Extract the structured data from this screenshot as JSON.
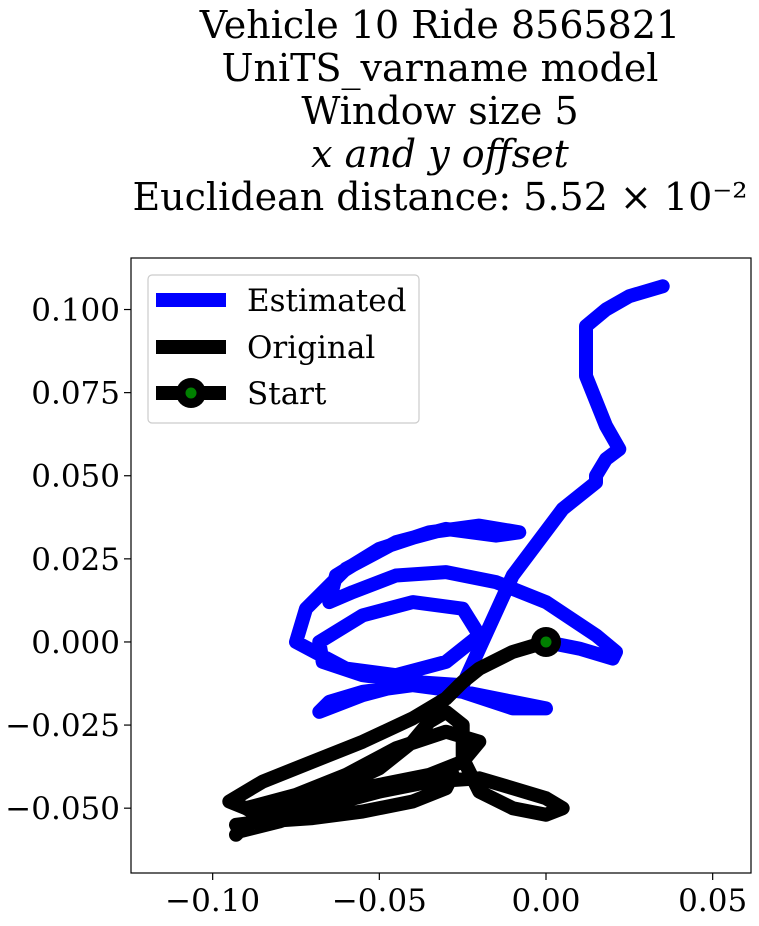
{
  "chart_data": {
    "type": "line",
    "title_lines": [
      "Vehicle 10 Ride 8565821",
      "UniTS_varname model",
      "Window size 5",
      "x and y offset",
      "Euclidean distance: 5.52 × 10⁻²"
    ],
    "xlabel": "",
    "ylabel": "",
    "xlim": [
      -0.1245,
      0.0615
    ],
    "ylim": [
      -0.0695,
      0.1155
    ],
    "xticks": [
      -0.1,
      -0.05,
      0.0,
      0.05
    ],
    "xtick_labels": [
      "−0.10",
      "−0.05",
      "0.00",
      "0.05"
    ],
    "yticks": [
      -0.05,
      -0.025,
      0.0,
      0.025,
      0.05,
      0.075,
      0.1
    ],
    "ytick_labels": [
      "−0.050",
      "−0.025",
      "0.000",
      "0.025",
      "0.050",
      "0.075",
      "0.100"
    ],
    "grid": false,
    "legend_position": "top-left",
    "legend": [
      "Estimated",
      "Original",
      "Start"
    ],
    "colors": {
      "estimated": "#0000ff",
      "original": "#000000",
      "start_fill": "#008000",
      "start_edge": "#000000"
    },
    "series": [
      {
        "name": "Estimated",
        "x": [
          0.0,
          0.01,
          0.02,
          0.021,
          0.015,
          0.0,
          -0.015,
          -0.03,
          -0.045,
          -0.058,
          -0.065,
          -0.063,
          -0.05,
          -0.035,
          -0.02,
          -0.008,
          -0.015,
          -0.03,
          -0.045,
          -0.06,
          -0.072,
          -0.075,
          -0.06,
          -0.045,
          -0.03,
          -0.02,
          -0.025,
          -0.04,
          -0.055,
          -0.068,
          -0.067,
          -0.055,
          -0.04,
          -0.025,
          -0.01,
          0.0,
          -0.01,
          -0.025,
          -0.04,
          -0.055,
          -0.065,
          -0.068,
          -0.055,
          -0.04,
          -0.025,
          -0.01,
          0.005,
          0.015,
          0.015,
          0.018,
          0.022,
          0.018,
          0.012,
          0.012,
          0.012,
          0.018,
          0.025,
          0.035
        ],
        "y": [
          0.0,
          -0.002,
          -0.005,
          -0.003,
          0.002,
          0.012,
          0.018,
          0.021,
          0.02,
          0.015,
          0.012,
          0.02,
          0.028,
          0.033,
          0.035,
          0.033,
          0.032,
          0.034,
          0.03,
          0.022,
          0.01,
          0.0,
          -0.008,
          -0.01,
          -0.006,
          0.002,
          0.01,
          0.012,
          0.008,
          0.0,
          -0.006,
          -0.01,
          -0.012,
          -0.015,
          -0.02,
          -0.02,
          -0.018,
          -0.015,
          -0.013,
          -0.015,
          -0.018,
          -0.021,
          -0.016,
          -0.012,
          -0.013,
          0.02,
          0.04,
          0.048,
          0.05,
          0.055,
          0.058,
          0.065,
          0.08,
          0.09,
          0.095,
          0.1,
          0.104,
          0.107
        ]
      },
      {
        "name": "Original",
        "x": [
          0.0,
          -0.01,
          -0.02,
          -0.025,
          -0.03,
          -0.04,
          -0.055,
          -0.07,
          -0.085,
          -0.095,
          -0.09,
          -0.075,
          -0.06,
          -0.045,
          -0.03,
          -0.02,
          -0.025,
          -0.035,
          -0.05,
          -0.065,
          -0.08,
          -0.09,
          -0.085,
          -0.07,
          -0.055,
          -0.04,
          -0.028,
          -0.03,
          -0.04,
          -0.055,
          -0.07,
          -0.085,
          -0.093,
          -0.092,
          -0.08,
          -0.065,
          -0.05,
          -0.035,
          -0.02,
          -0.01,
          0.0,
          0.005,
          0.0,
          -0.01,
          -0.02,
          -0.025,
          -0.025,
          -0.03,
          -0.035,
          -0.04,
          -0.05,
          -0.065,
          -0.08,
          -0.09,
          -0.093
        ],
        "y": [
          0.0,
          -0.003,
          -0.008,
          -0.012,
          -0.017,
          -0.023,
          -0.03,
          -0.036,
          -0.042,
          -0.048,
          -0.05,
          -0.046,
          -0.04,
          -0.032,
          -0.027,
          -0.03,
          -0.036,
          -0.04,
          -0.043,
          -0.046,
          -0.048,
          -0.05,
          -0.053,
          -0.05,
          -0.046,
          -0.041,
          -0.04,
          -0.044,
          -0.048,
          -0.051,
          -0.053,
          -0.054,
          -0.055,
          -0.057,
          -0.054,
          -0.049,
          -0.045,
          -0.042,
          -0.041,
          -0.044,
          -0.047,
          -0.05,
          -0.052,
          -0.05,
          -0.045,
          -0.035,
          -0.025,
          -0.021,
          -0.024,
          -0.03,
          -0.038,
          -0.045,
          -0.051,
          -0.055,
          -0.058
        ]
      }
    ],
    "start_point": {
      "x": 0.0,
      "y": 0.0
    }
  }
}
